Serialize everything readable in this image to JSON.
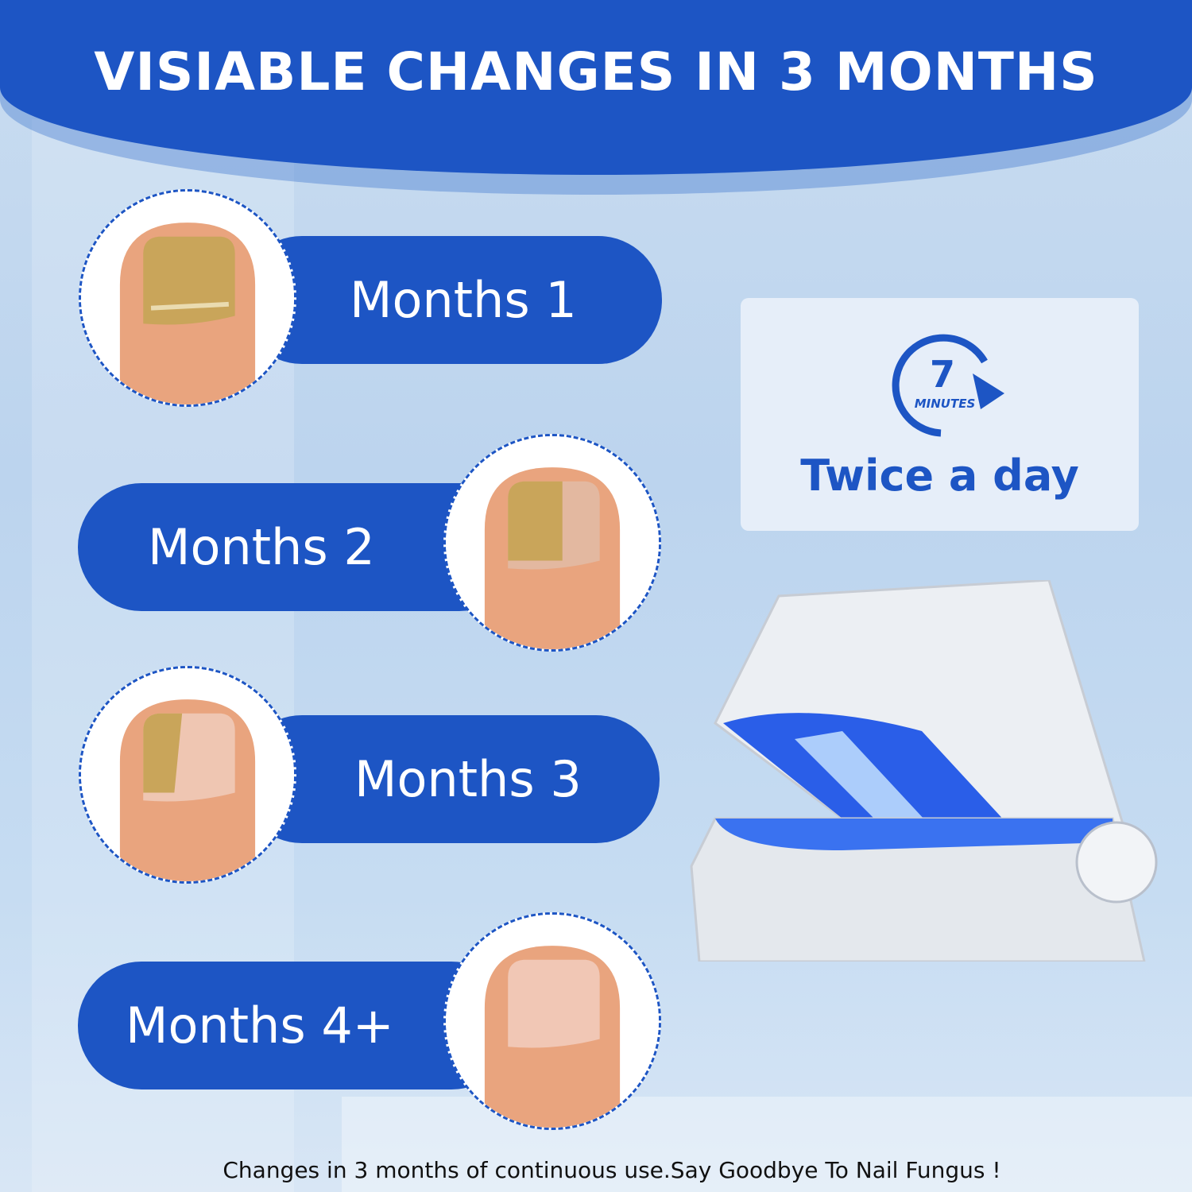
{
  "header": {
    "title": "VISIABLE CHANGES IN 3 MONTHS"
  },
  "stages": [
    {
      "label": "Months 1",
      "nail_condition": "severe"
    },
    {
      "label": "Months 2",
      "nail_condition": "moderate"
    },
    {
      "label": "Months 3",
      "nail_condition": "mild"
    },
    {
      "label": "Months 4+",
      "nail_condition": "healthy"
    }
  ],
  "usage_card": {
    "timer_number": "7",
    "timer_unit": "MINUTES",
    "frequency": "Twice a day",
    "icon": "timer-arrow-icon"
  },
  "footer": {
    "text": "Changes in 3 months of continuous use.Say Goodbye To Nail Fungus !"
  },
  "colors": {
    "brand_blue": "#1d55c4",
    "background": "#c4daf0"
  }
}
